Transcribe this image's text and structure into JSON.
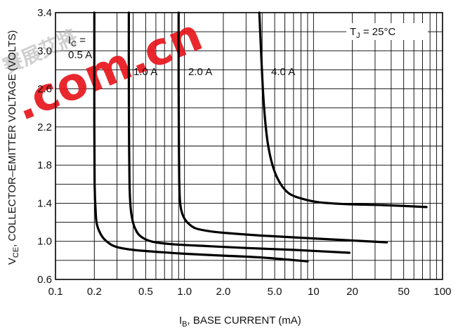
{
  "chart_data": {
    "type": "line",
    "xscale": "log",
    "xlim": [
      0.1,
      100
    ],
    "ylim": [
      0.6,
      3.4
    ],
    "xticks": [
      0.1,
      0.2,
      0.5,
      1.0,
      2.0,
      5.0,
      10,
      20,
      50,
      100
    ],
    "xtick_labels": [
      "0.1",
      "0.2",
      "0.5",
      "1.0",
      "2.0",
      "5.0",
      "10",
      "20",
      "50",
      "100"
    ],
    "yticks": [
      0.6,
      1.0,
      1.4,
      1.8,
      2.2,
      2.6,
      3.0,
      3.4
    ],
    "ytick_labels": [
      "0.6",
      "1.0",
      "1.4",
      "1.8",
      "2.2",
      "2.6",
      "3.0",
      "3.4"
    ],
    "ylabel_main": "V",
    "ylabel_sub": "CE",
    "ylabel_rest": ", COLLECTOR–EMITTER VOLTAGE (VOLTS)",
    "xlabel_main": "I",
    "xlabel_sub": "B",
    "xlabel_rest": ", BASE CURRENT (mA)",
    "annotation_main": "T",
    "annotation_sub": "J",
    "annotation_rest": " = 25°C",
    "grid": true,
    "series": [
      {
        "name_main": "I",
        "name_sub": "C",
        "name_rest": " =",
        "name_line2": "0.5 A",
        "x": [
          0.2,
          0.2,
          0.201,
          0.205,
          0.21,
          0.23,
          0.26,
          0.3,
          0.4,
          0.6,
          1.0,
          2.0,
          4.0,
          9.0
        ],
        "y": [
          3.4,
          2.2,
          1.6,
          1.3,
          1.17,
          1.05,
          0.98,
          0.94,
          0.91,
          0.89,
          0.87,
          0.85,
          0.83,
          0.79
        ]
      },
      {
        "name": "1.0 A",
        "x": [
          0.37,
          0.37,
          0.372,
          0.375,
          0.38,
          0.39,
          0.41,
          0.45,
          0.55,
          0.8,
          1.5,
          3,
          7,
          19
        ],
        "y": [
          3.4,
          2.8,
          2.0,
          1.6,
          1.4,
          1.26,
          1.15,
          1.06,
          1.0,
          0.97,
          0.95,
          0.93,
          0.91,
          0.88
        ]
      },
      {
        "name": "2.0 A",
        "x": [
          0.9,
          0.9,
          0.905,
          0.91,
          0.92,
          0.94,
          0.98,
          1.05,
          1.2,
          1.5,
          2,
          4,
          10,
          37
        ],
        "y": [
          3.4,
          2.6,
          2.0,
          1.65,
          1.45,
          1.34,
          1.26,
          1.2,
          1.14,
          1.11,
          1.09,
          1.06,
          1.03,
          0.99
        ]
      },
      {
        "name": "4.0 A",
        "x": [
          3.8,
          3.92,
          4.05,
          4.2,
          4.4,
          4.7,
          5.1,
          5.7,
          6.5,
          8,
          11,
          18,
          35,
          75
        ],
        "y": [
          3.4,
          3.0,
          2.6,
          2.3,
          2.05,
          1.85,
          1.7,
          1.58,
          1.5,
          1.45,
          1.41,
          1.39,
          1.38,
          1.36
        ]
      }
    ]
  },
  "watermark": {
    "text": ".com.cn",
    "glyphs": "賽展艾將",
    "color": "#e8161d"
  }
}
